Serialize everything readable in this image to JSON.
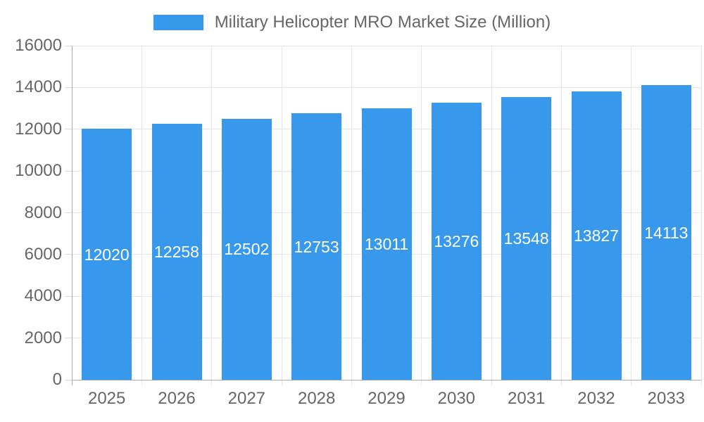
{
  "chart_data": {
    "type": "bar",
    "title": "Military Helicopter MRO Market Size (Million)",
    "legend_label": "Military Helicopter MRO Market Size (Million)",
    "legend_position": "top",
    "categories": [
      "2025",
      "2026",
      "2027",
      "2028",
      "2029",
      "2030",
      "2031",
      "2032",
      "2033"
    ],
    "values": [
      12020,
      12258,
      12502,
      12753,
      13011,
      13276,
      13548,
      13827,
      14113
    ],
    "value_labels": [
      "12020",
      "12258",
      "12502",
      "12753",
      "13011",
      "13276",
      "13548",
      "13827",
      "14113"
    ],
    "xlabel": "",
    "ylabel": "",
    "ylim": [
      0,
      16000
    ],
    "yticks": [
      0,
      2000,
      4000,
      6000,
      8000,
      10000,
      12000,
      14000,
      16000
    ],
    "grid": true,
    "colors": {
      "bar_fill": "#3899EC",
      "value_label_text": "#FFFFFF",
      "tick_text": "#666666",
      "gridline": "#E6E6E6",
      "tick_mark": "#D9D9D9",
      "axis_line": "#ACACAC",
      "background": "#FFFFFF"
    }
  }
}
